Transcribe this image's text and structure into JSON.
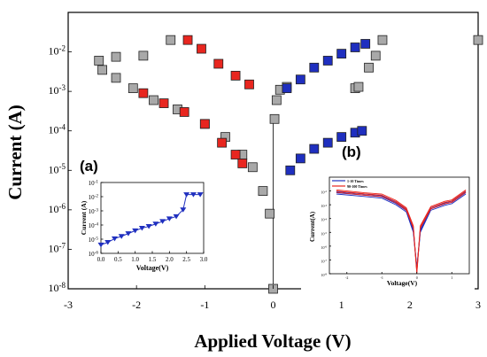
{
  "chart_data": [
    {
      "type": "scatter",
      "xlabel": "Applied Voltage (V)",
      "ylabel": "Current (A)",
      "xlim": [
        -3,
        3
      ],
      "ylim": [
        1e-08,
        0.1
      ],
      "y_scale": "log",
      "x_ticks": [
        "-3",
        "-2",
        "-1",
        "0",
        "1",
        "2",
        "3"
      ],
      "y_ticks": [
        "10-8",
        "10-7",
        "10-6",
        "10-5",
        "10-4",
        "10-3",
        "10-2"
      ],
      "colors": {
        "default": "#a9a9a9",
        "negative": "#e8261f",
        "positive": "#1f2fbf"
      },
      "series": [
        {
          "color": "default",
          "points": [
            [
              -1.5,
              0.02
            ],
            [
              -1.9,
              0.008
            ],
            [
              -2.3,
              0.0075
            ],
            [
              -2.55,
              0.006
            ],
            [
              -2.5,
              0.0035
            ],
            [
              -2.3,
              0.0022
            ],
            [
              -2.05,
              0.0012
            ],
            [
              -1.75,
              0.0006
            ],
            [
              -1.4,
              0.00035
            ],
            [
              -1.0,
              0.00015
            ],
            [
              -0.7,
              7e-05
            ],
            [
              -0.45,
              2.5e-05
            ],
            [
              -0.3,
              1.2e-05
            ],
            [
              -0.15,
              3e-06
            ],
            [
              -0.05,
              8e-07
            ],
            [
              0.0,
              1e-08
            ],
            [
              0.02,
              0.0002
            ],
            [
              0.05,
              0.0006
            ],
            [
              0.1,
              0.0011
            ],
            [
              0.2,
              0.0013
            ],
            [
              1.2,
              0.0012
            ],
            [
              1.25,
              0.0013
            ],
            [
              1.4,
              0.004
            ],
            [
              1.5,
              0.008
            ],
            [
              1.6,
              0.02
            ],
            [
              3.0,
              0.02
            ]
          ]
        },
        {
          "color": "negative",
          "points": [
            [
              -1.25,
              0.02
            ],
            [
              -1.05,
              0.012
            ],
            [
              -0.8,
              0.005
            ],
            [
              -0.55,
              0.0025
            ],
            [
              -0.35,
              0.0015
            ],
            [
              -1.9,
              0.0009
            ],
            [
              -1.6,
              0.0005
            ],
            [
              -1.3,
              0.0003
            ],
            [
              -1.0,
              0.00015
            ],
            [
              -0.75,
              5e-05
            ],
            [
              -0.55,
              2.5e-05
            ],
            [
              -0.45,
              1.5e-05
            ]
          ]
        },
        {
          "color": "positive",
          "points": [
            [
              0.2,
              0.0012
            ],
            [
              0.4,
              0.002
            ],
            [
              0.6,
              0.004
            ],
            [
              0.8,
              0.006
            ],
            [
              1.0,
              0.009
            ],
            [
              1.2,
              0.013
            ],
            [
              1.35,
              0.016
            ],
            [
              0.25,
              1e-05
            ],
            [
              0.4,
              2e-05
            ],
            [
              0.6,
              3.5e-05
            ],
            [
              0.8,
              5e-05
            ],
            [
              1.0,
              7e-05
            ],
            [
              1.2,
              9e-05
            ],
            [
              1.3,
              0.0001
            ]
          ]
        }
      ]
    },
    {
      "type": "line",
      "panel_label": "(a)",
      "xlabel": "Voltage(V)",
      "ylabel": "Current (A)",
      "xlim": [
        0,
        3.0
      ],
      "ylim": [
        1e-06,
        0.1
      ],
      "y_scale": "log",
      "x_ticks": [
        "0.0",
        "0.5",
        "1.0",
        "1.5",
        "2.0",
        "2.5",
        "3.0"
      ],
      "y_ticks": [
        "10-6",
        "10-5",
        "10-4",
        "10-3",
        "10-2",
        "10-1"
      ],
      "series": [
        {
          "color": "#1f2fbf",
          "points": [
            [
              0.0,
              4e-06
            ],
            [
              0.2,
              6e-06
            ],
            [
              0.4,
              1.1e-05
            ],
            [
              0.6,
              1.6e-05
            ],
            [
              0.8,
              2.5e-05
            ],
            [
              1.0,
              4e-05
            ],
            [
              1.2,
              6e-05
            ],
            [
              1.4,
              8e-05
            ],
            [
              1.6,
              0.00012
            ],
            [
              1.8,
              0.00018
            ],
            [
              2.0,
              0.00028
            ],
            [
              2.2,
              0.0004
            ],
            [
              2.4,
              0.0012
            ],
            [
              2.5,
              0.014
            ],
            [
              2.7,
              0.014
            ],
            [
              2.9,
              0.014
            ]
          ]
        }
      ]
    },
    {
      "type": "line",
      "panel_label": "(b)",
      "xlabel": "Voltage(V)",
      "ylabel": "Current(A)",
      "xlim": [
        -2.5,
        1.5
      ],
      "ylim": [
        1e-08,
        0.1
      ],
      "y_scale": "log",
      "x_ticks": [
        "-2",
        "-1",
        "0",
        "1"
      ],
      "y_ticks": [
        "10-8",
        "10-7",
        "10-6",
        "10-5",
        "10-4",
        "10-3",
        "10-2"
      ],
      "legend": {
        "position": "top-left",
        "entries": [
          "1-10 Times",
          "90-100 Times"
        ]
      },
      "series": [
        {
          "name": "1-10 Times",
          "color": "#1f2fbf",
          "points": [
            [
              -2.3,
              0.006
            ],
            [
              -1.5,
              0.004
            ],
            [
              -1.0,
              0.003
            ],
            [
              -0.6,
              0.001
            ],
            [
              -0.3,
              0.0003
            ],
            [
              -0.1,
              1e-05
            ],
            [
              0.0,
              2e-08
            ],
            [
              0.1,
              1e-05
            ],
            [
              0.4,
              0.0004
            ],
            [
              0.8,
              0.0009
            ],
            [
              1.0,
              0.0012
            ],
            [
              1.4,
              0.006
            ]
          ]
        },
        {
          "name": "90-100 Times",
          "color": "#e8261f",
          "points": [
            [
              -2.3,
              0.008
            ],
            [
              -1.5,
              0.005
            ],
            [
              -1.0,
              0.004
            ],
            [
              -0.6,
              0.0014
            ],
            [
              -0.3,
              0.0004
            ],
            [
              -0.1,
              2e-05
            ],
            [
              0.0,
              1e-08
            ],
            [
              0.1,
              2e-05
            ],
            [
              0.4,
              0.0005
            ],
            [
              0.8,
              0.0012
            ],
            [
              1.0,
              0.0015
            ],
            [
              1.4,
              0.008
            ]
          ]
        }
      ]
    }
  ]
}
